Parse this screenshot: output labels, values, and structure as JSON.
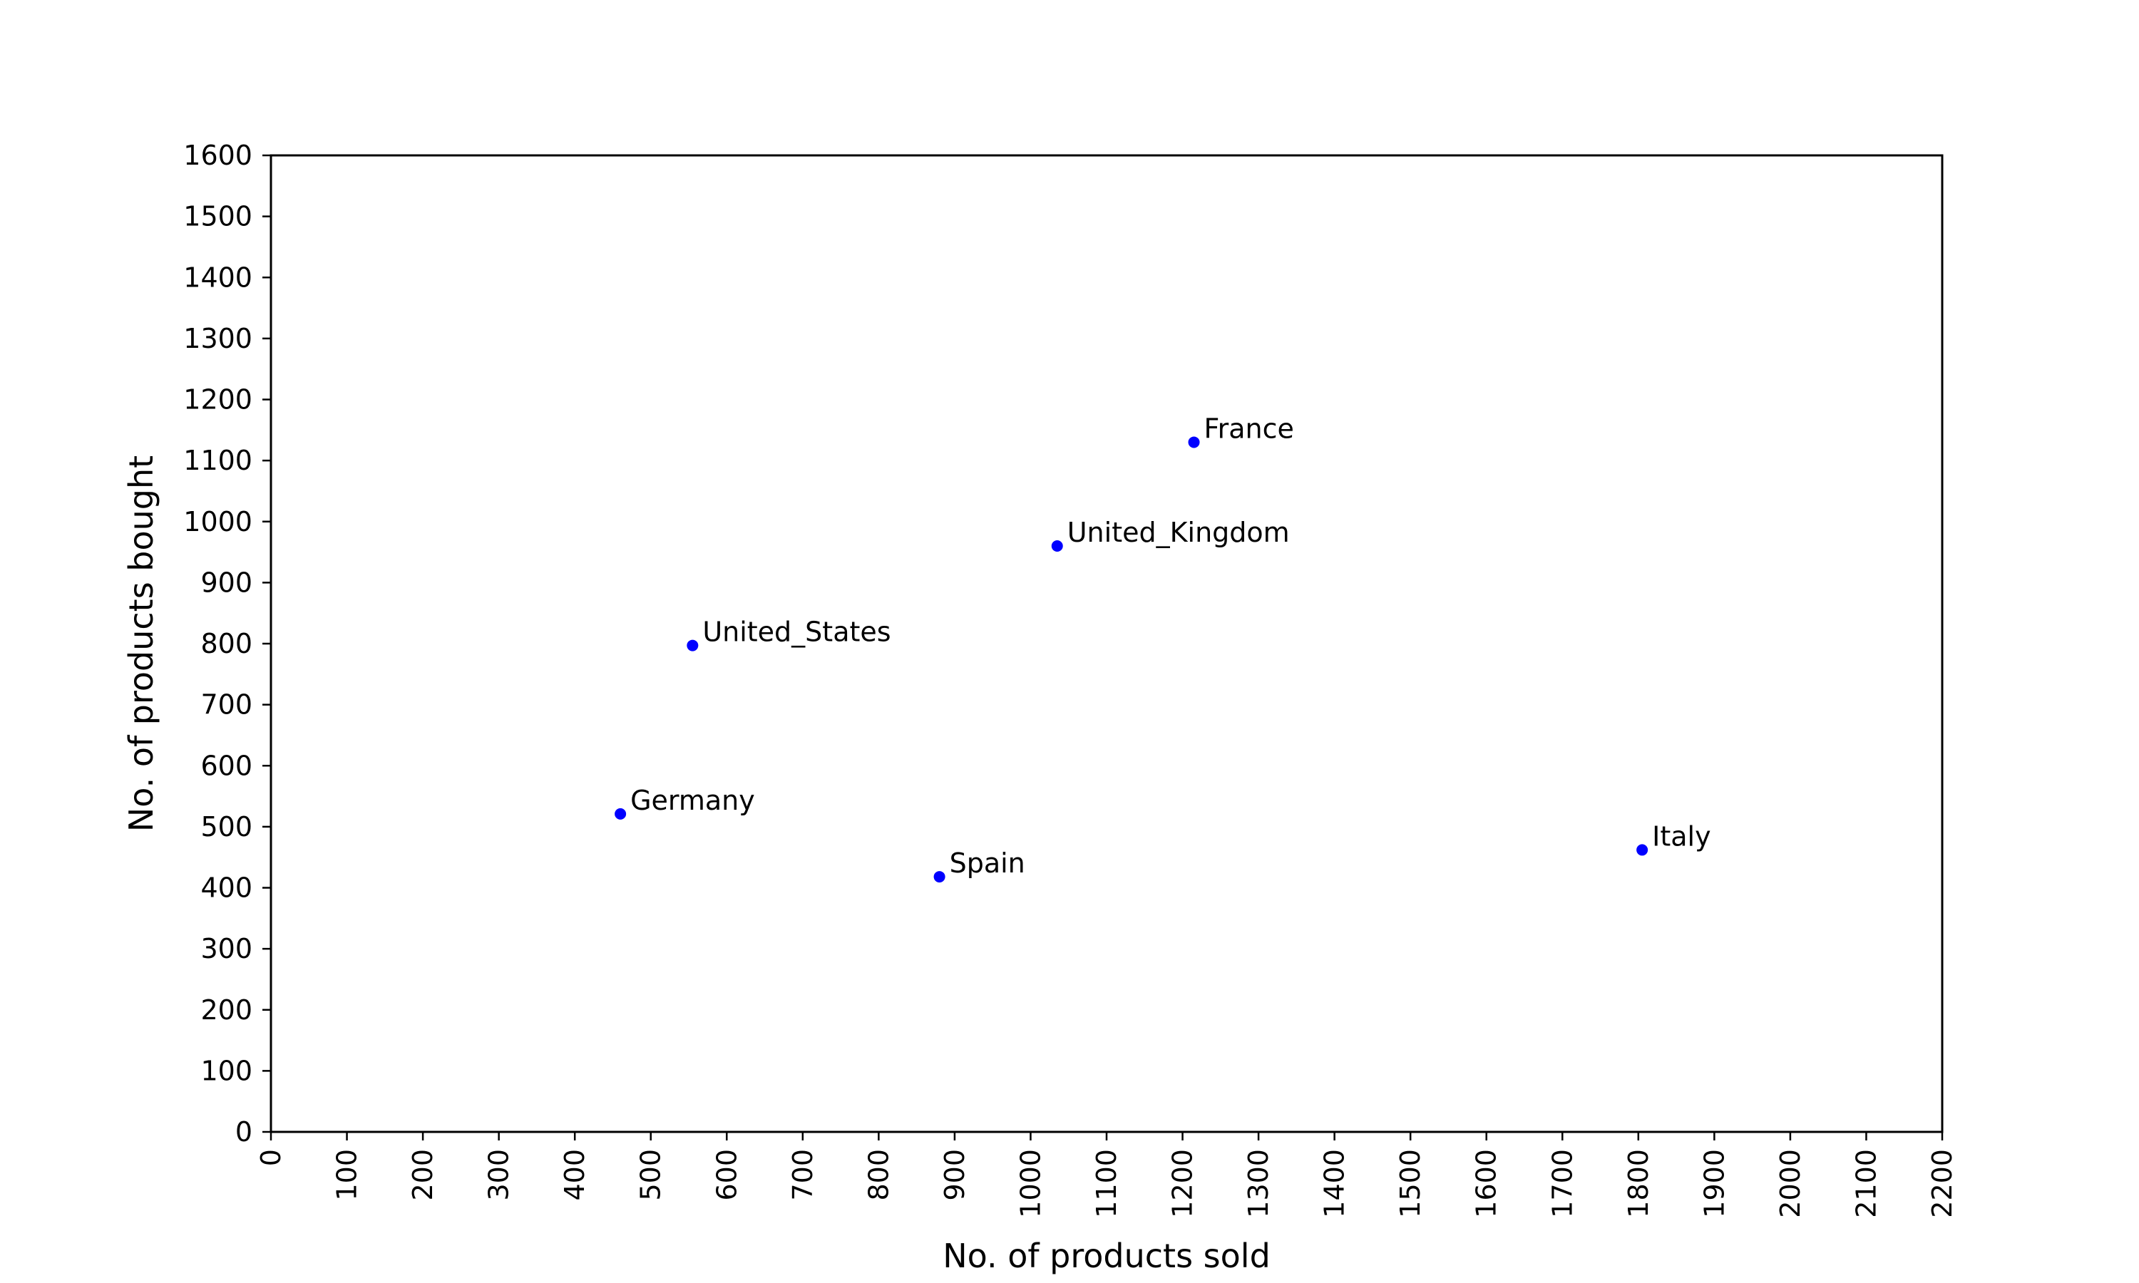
{
  "chart_data": {
    "type": "scatter",
    "xlabel": "No. of products sold",
    "ylabel": "No. of products bought",
    "xlim": [
      0,
      2200
    ],
    "ylim": [
      0,
      1600
    ],
    "x_ticks": [
      0,
      100,
      200,
      300,
      400,
      500,
      600,
      700,
      800,
      900,
      1000,
      1100,
      1200,
      1300,
      1400,
      1500,
      1600,
      1700,
      1800,
      1900,
      2000,
      2100,
      2200
    ],
    "y_ticks": [
      0,
      100,
      200,
      300,
      400,
      500,
      600,
      700,
      800,
      900,
      1000,
      1100,
      1200,
      1300,
      1400,
      1500,
      1600
    ],
    "grid": false,
    "point_color": "#0000ff",
    "points": [
      {
        "label": "France",
        "x": 1215,
        "y": 1130
      },
      {
        "label": "United_Kingdom",
        "x": 1035,
        "y": 960
      },
      {
        "label": "United_States",
        "x": 555,
        "y": 797
      },
      {
        "label": "Germany",
        "x": 460,
        "y": 521
      },
      {
        "label": "Spain",
        "x": 880,
        "y": 418
      },
      {
        "label": "Italy",
        "x": 1805,
        "y": 462
      }
    ]
  }
}
